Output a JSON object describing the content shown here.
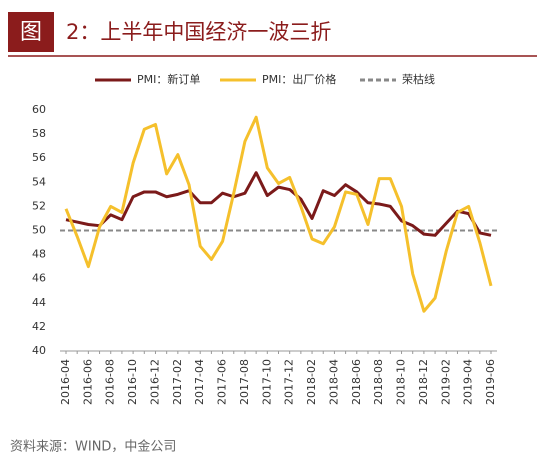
{
  "chart_data": {
    "type": "line",
    "figure_label": "图",
    "title": "2：上半年中国经济一波三折",
    "source": "资料来源：WIND，中金公司",
    "categories": [
      "2016-04",
      null,
      "2016-06",
      null,
      "2016-08",
      null,
      "2016-10",
      null,
      "2016-12",
      null,
      "2017-02",
      null,
      "2017-04",
      null,
      "2017-06",
      null,
      "2017-08",
      null,
      "2017-10",
      null,
      "2017-12",
      null,
      "2018-02",
      null,
      "2018-04",
      null,
      "2018-06",
      null,
      "2018-08",
      null,
      "2018-10",
      null,
      "2018-12",
      null,
      "2019-02",
      null,
      "2019-04",
      null,
      "2019-06"
    ],
    "series": [
      {
        "name": "PMI：新订单",
        "color": "#7b1a1a",
        "values": [
          50.9,
          50.7,
          50.5,
          50.4,
          51.3,
          50.9,
          52.8,
          53.2,
          53.2,
          52.8,
          53.0,
          53.3,
          52.3,
          52.3,
          53.1,
          52.8,
          53.1,
          54.8,
          52.9,
          53.6,
          53.4,
          52.6,
          51.0,
          53.3,
          52.9,
          53.8,
          53.2,
          52.3,
          52.2,
          52.0,
          50.8,
          50.4,
          49.7,
          49.6,
          50.6,
          51.6,
          51.4,
          49.8,
          49.6
        ]
      },
      {
        "name": "PMI：出厂价格",
        "color": "#f5c02c",
        "values": [
          51.8,
          49.5,
          47.0,
          50.3,
          52.0,
          51.5,
          55.6,
          58.4,
          58.8,
          54.7,
          56.3,
          53.8,
          48.7,
          47.6,
          49.1,
          53.1,
          57.4,
          59.4,
          55.2,
          53.9,
          54.4,
          52.0,
          49.3,
          48.9,
          50.3,
          53.2,
          53.0,
          50.5,
          54.3,
          54.3,
          52.0,
          46.4,
          43.3,
          44.4,
          48.3,
          51.5,
          52.0,
          49.0,
          45.4
        ]
      }
    ],
    "reference_line": {
      "name": "荣枯线",
      "value": 50,
      "color": "#888888"
    },
    "ylim": [
      40,
      60
    ],
    "yticks": [
      40,
      42,
      44,
      46,
      48,
      50,
      52,
      54,
      56,
      58,
      60
    ]
  }
}
